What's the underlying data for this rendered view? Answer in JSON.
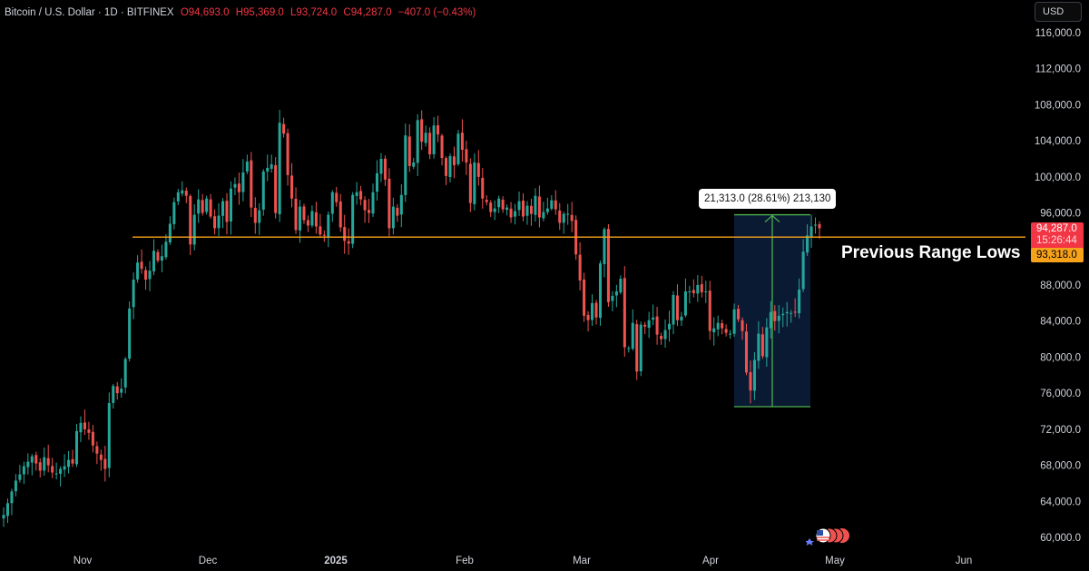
{
  "legend": {
    "symbol": "Bitcoin / U.S. Dollar · 1D · BITFINEX",
    "open": "O94,693.0",
    "high": "H95,369.0",
    "low": "L93,724.0",
    "close": "C94,287.0",
    "change": "−407.0 (−0.43%)"
  },
  "currency_button": "USD",
  "last_price_tag": {
    "price": "94,287.0",
    "countdown": "15:26:44"
  },
  "line_price_tag": "93,318.0",
  "annotation": "Previous Range Lows",
  "measure_label": "21,313.0 (28.61%) 213,130",
  "colors": {
    "up": "#26a69a",
    "down": "#ef5350",
    "horizontal_line": "#f7a21b",
    "measure": "#4caf50",
    "measure_fill": "#0b1a33",
    "background": "#000000"
  },
  "chart_data": {
    "type": "candlestick",
    "symbol": "BTCUSD",
    "interval": "1D",
    "x_ticks": [
      "Nov",
      "Dec",
      "2025",
      "Feb",
      "Mar",
      "Apr",
      "May",
      "Jun"
    ],
    "y_ticks": [
      "116,000.0",
      "112,000.0",
      "108,000.0",
      "104,000.0",
      "100,000.0",
      "96,000.0",
      "92,000.0",
      "88,000.0",
      "84,000.0",
      "80,000.0",
      "76,000.0",
      "72,000.0",
      "68,000.0",
      "64,000.0",
      "60,000.0"
    ],
    "ylim": [
      59000,
      117500
    ],
    "horizontal_line": {
      "price": 93318,
      "label": "Previous Range Lows"
    },
    "measure": {
      "from_price": 74500,
      "to_price": 95800,
      "text": "21,313.0 (28.61%) 213,130"
    },
    "candles_approx_close": [
      62500,
      63800,
      65100,
      66300,
      67000,
      67900,
      68400,
      69000,
      68200,
      67400,
      68900,
      68000,
      67200,
      67100,
      67600,
      67900,
      68600,
      68200,
      71800,
      72700,
      72000,
      71600,
      70200,
      69300,
      68600,
      67600,
      74900,
      76800,
      76000,
      76500,
      79800,
      85400,
      88600,
      90500,
      89800,
      88600,
      89600,
      91800,
      90700,
      91200,
      92800,
      94800,
      97200,
      98300,
      98500,
      97900,
      92500,
      95800,
      97500,
      96000,
      97600,
      95600,
      94300,
      95700,
      97300,
      95000,
      98700,
      99200,
      98300,
      100500,
      101700,
      96600,
      94900,
      96300,
      100600,
      101000,
      101400,
      96000,
      106000,
      104800,
      100200,
      97600,
      94100,
      96700,
      95200,
      94600,
      96200,
      94500,
      93600,
      93500,
      95800,
      98300,
      97200,
      94400,
      92900,
      92600,
      98000,
      98300,
      97500,
      96300,
      96000,
      98300,
      100400,
      102000,
      99700,
      94300,
      96700,
      95700,
      98000,
      104600,
      101200,
      101600,
      106300,
      103900,
      104900,
      102500,
      105700,
      104700,
      102100,
      100100,
      102300,
      101300,
      104800,
      103000,
      101600,
      97100,
      101600,
      100000,
      97600,
      97200,
      96100,
      96500,
      97600,
      96400,
      96600,
      95500,
      96200,
      97300,
      95600,
      96800,
      95900,
      97900,
      95500,
      96100,
      96500,
      97400,
      96400,
      94900,
      95900,
      95900,
      95100,
      91400,
      88500,
      84600,
      84100,
      86000,
      84400,
      90400,
      94200,
      86100,
      86800,
      87300,
      88700,
      81100,
      81000,
      83800,
      78400,
      83600,
      83400,
      84100,
      84400,
      82500,
      82000,
      83000,
      83700,
      86900,
      84100,
      84500,
      87300,
      87300,
      87100,
      88000,
      87200,
      87300,
      82900,
      83200,
      83800,
      83200,
      82700,
      82600,
      85300,
      84200,
      82900,
      78300,
      76300,
      79700,
      82600,
      80100,
      83300,
      85000,
      84000,
      84600,
      84800,
      85000,
      84900,
      85000,
      87500,
      91700,
      93500,
      94500,
      94700,
      94300
    ]
  }
}
